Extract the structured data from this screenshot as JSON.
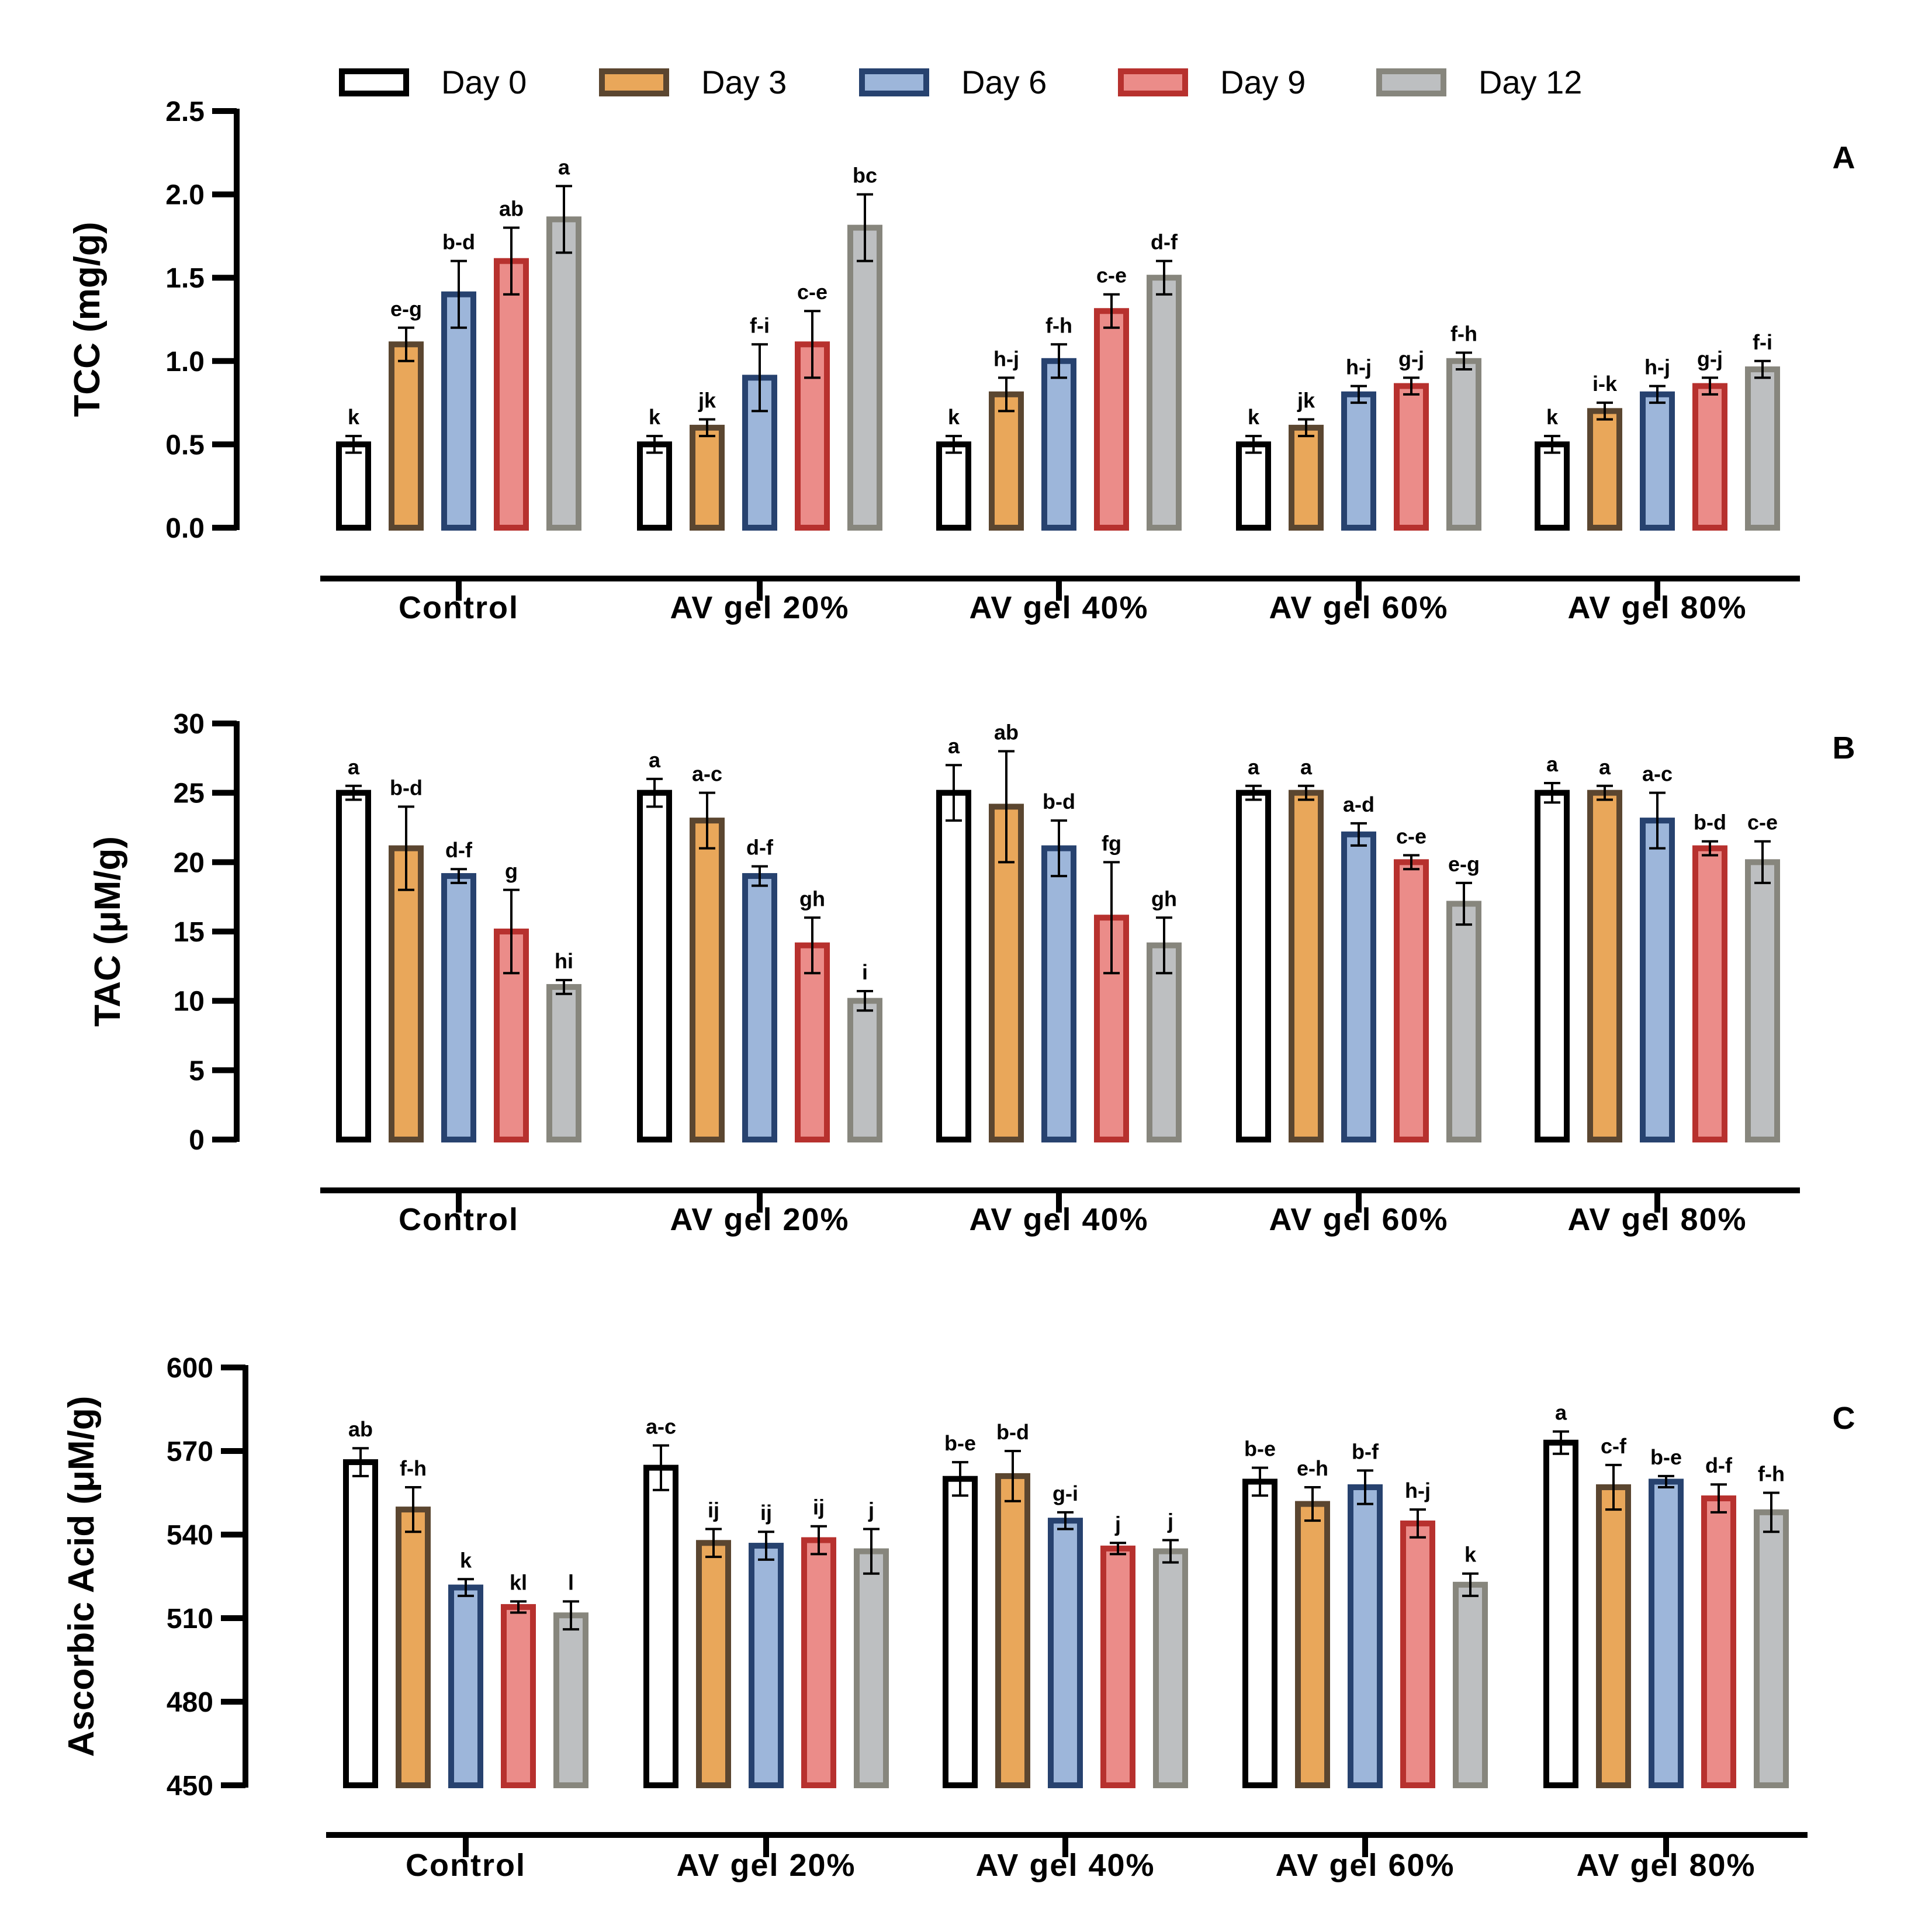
{
  "legend": [
    "Day 0",
    "Day 3",
    "Day 6",
    "Day 9",
    "Day 12"
  ],
  "series_style": [
    {
      "name": "Day 0",
      "fill": "#ffffff",
      "stroke": "#000000"
    },
    {
      "name": "Day 3",
      "fill": "#e9a75a",
      "stroke": "#5b4630"
    },
    {
      "name": "Day 6",
      "fill": "#9db6da",
      "stroke": "#27426f"
    },
    {
      "name": "Day 9",
      "fill": "#eb8c89",
      "stroke": "#b7312e"
    },
    {
      "name": "Day 12",
      "fill": "#bdbfc1",
      "stroke": "#87867d"
    }
  ],
  "chart_data": [
    {
      "type": "bar",
      "panel": "A",
      "ylabel": "TCC (mg/g)",
      "ylim": [
        0,
        2.5
      ],
      "yticks": [
        "0.0",
        "0.5",
        "1.0",
        "1.5",
        "2.0",
        "2.5"
      ],
      "categories": [
        "Control",
        "AV gel 20%",
        "AV gel 40%",
        "AV gel 60%",
        "AV gel 80%"
      ],
      "series": [
        {
          "name": "Day 0",
          "values": [
            0.5,
            0.5,
            0.5,
            0.5,
            0.5
          ],
          "errors": [
            0.05,
            0.05,
            0.05,
            0.05,
            0.05
          ],
          "letters": [
            "k",
            "k",
            "k",
            "k",
            "k"
          ]
        },
        {
          "name": "Day 3",
          "values": [
            1.1,
            0.6,
            0.8,
            0.6,
            0.7
          ],
          "errors": [
            0.1,
            0.05,
            0.1,
            0.05,
            0.05
          ],
          "letters": [
            "e-g",
            "jk",
            "h-j",
            "jk",
            "i-k"
          ]
        },
        {
          "name": "Day 6",
          "values": [
            1.4,
            0.9,
            1.0,
            0.8,
            0.8
          ],
          "errors": [
            0.2,
            0.2,
            0.1,
            0.05,
            0.05
          ],
          "letters": [
            "b-d",
            "f-i",
            "f-h",
            "h-j",
            "h-j"
          ]
        },
        {
          "name": "Day 9",
          "values": [
            1.6,
            1.1,
            1.3,
            0.85,
            0.85
          ],
          "errors": [
            0.2,
            0.2,
            0.1,
            0.05,
            0.05
          ],
          "letters": [
            "ab",
            "c-e",
            "c-e",
            "g-j",
            "g-j"
          ]
        },
        {
          "name": "Day 12",
          "values": [
            1.85,
            1.8,
            1.5,
            1.0,
            0.95
          ],
          "errors": [
            0.2,
            0.2,
            0.1,
            0.05,
            0.05
          ],
          "letters": [
            "a",
            "bc",
            "d-f",
            "f-h",
            "f-i"
          ]
        }
      ]
    },
    {
      "type": "bar",
      "panel": "B",
      "ylabel": "TAC (μM/g)",
      "ylim": [
        0,
        30
      ],
      "yticks": [
        "0",
        "5",
        "10",
        "15",
        "20",
        "25",
        "30"
      ],
      "categories": [
        "Control",
        "AV gel 20%",
        "AV gel 40%",
        "AV gel 60%",
        "AV gel 80%"
      ],
      "series": [
        {
          "name": "Day 0",
          "values": [
            25,
            25,
            25,
            25,
            25
          ],
          "errors": [
            0.5,
            1,
            2,
            0.5,
            0.7
          ],
          "letters": [
            "a",
            "a",
            "a",
            "a",
            "a"
          ]
        },
        {
          "name": "Day 3",
          "values": [
            21,
            23,
            24,
            25,
            25
          ],
          "errors": [
            3,
            2,
            4,
            0.5,
            0.5
          ],
          "letters": [
            "b-d",
            "a-c",
            "ab",
            "a",
            "a"
          ]
        },
        {
          "name": "Day 6",
          "values": [
            19,
            19,
            21,
            22,
            23
          ],
          "errors": [
            0.5,
            0.7,
            2,
            0.8,
            2
          ],
          "letters": [
            "d-f",
            "d-f",
            "b-d",
            "a-d",
            "a-c"
          ]
        },
        {
          "name": "Day 9",
          "values": [
            15,
            14,
            16,
            20,
            21
          ],
          "errors": [
            3,
            2,
            4,
            0.5,
            0.5
          ],
          "letters": [
            "g",
            "gh",
            "fg",
            "c-e",
            "b-d"
          ]
        },
        {
          "name": "Day 12",
          "values": [
            11,
            10,
            14,
            17,
            20
          ],
          "errors": [
            0.5,
            0.7,
            2,
            1.5,
            1.5
          ],
          "letters": [
            "hi",
            "i",
            "gh",
            "e-g",
            "c-e"
          ]
        }
      ]
    },
    {
      "type": "bar",
      "panel": "C",
      "ylabel": "Ascorbic Acid (μM/g)",
      "ylim": [
        450,
        600
      ],
      "yticks": [
        "450",
        "480",
        "510",
        "540",
        "570",
        "600"
      ],
      "categories": [
        "Control",
        "AV gel 20%",
        "AV gel 40%",
        "AV gel 60%",
        "AV gel 80%"
      ],
      "series": [
        {
          "name": "Day 0",
          "values": [
            566,
            564,
            560,
            559,
            573
          ],
          "errors": [
            5,
            8,
            6,
            5,
            4
          ],
          "letters": [
            "ab",
            "a-c",
            "b-e",
            "b-e",
            "a"
          ]
        },
        {
          "name": "Day 3",
          "values": [
            549,
            537,
            561,
            551,
            557
          ],
          "errors": [
            8,
            5,
            9,
            6,
            8
          ],
          "letters": [
            "f-h",
            "ij",
            "b-d",
            "e-h",
            "c-f"
          ]
        },
        {
          "name": "Day 6",
          "values": [
            521,
            536,
            545,
            557,
            559
          ],
          "errors": [
            3,
            5,
            3,
            6,
            2
          ],
          "letters": [
            "k",
            "ij",
            "g-i",
            "b-f",
            "b-e"
          ]
        },
        {
          "name": "Day 9",
          "values": [
            514,
            538,
            535,
            544,
            553
          ],
          "errors": [
            2,
            5,
            2,
            5,
            5
          ],
          "letters": [
            "kl",
            "ij",
            "j",
            "h-j",
            "d-f"
          ]
        },
        {
          "name": "Day 12",
          "values": [
            511,
            534,
            534,
            522,
            548
          ],
          "errors": [
            5,
            8,
            4,
            4,
            7
          ],
          "letters": [
            "l",
            "j",
            "j",
            "k",
            "f-h"
          ]
        }
      ]
    }
  ]
}
